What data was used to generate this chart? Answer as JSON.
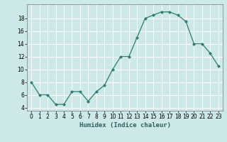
{
  "x": [
    0,
    1,
    2,
    3,
    4,
    5,
    6,
    7,
    8,
    9,
    10,
    11,
    12,
    13,
    14,
    15,
    16,
    17,
    18,
    19,
    20,
    21,
    22,
    23
  ],
  "y": [
    8,
    6,
    6,
    4.5,
    4.5,
    6.5,
    6.5,
    5,
    6.5,
    7.5,
    10,
    12,
    12,
    15,
    18,
    18.5,
    19,
    19,
    18.5,
    17.5,
    14,
    14,
    12.5,
    10.5
  ],
  "line_color": "#2d7d6e",
  "marker_color": "#2d7d6e",
  "bg_color": "#cce8e8",
  "grid_color": "#ffffff",
  "xlabel": "Humidex (Indice chaleur)",
  "ylim": [
    3.5,
    20.2
  ],
  "xlim": [
    -0.5,
    23.5
  ],
  "yticks": [
    4,
    6,
    8,
    10,
    12,
    14,
    16,
    18
  ],
  "xtick_labels": [
    "0",
    "1",
    "2",
    "3",
    "4",
    "5",
    "6",
    "7",
    "8",
    "9",
    "10",
    "11",
    "12",
    "13",
    "14",
    "15",
    "16",
    "17",
    "18",
    "19",
    "20",
    "21",
    "22",
    "23"
  ],
  "label_fontsize": 6.5,
  "tick_fontsize": 5.5
}
